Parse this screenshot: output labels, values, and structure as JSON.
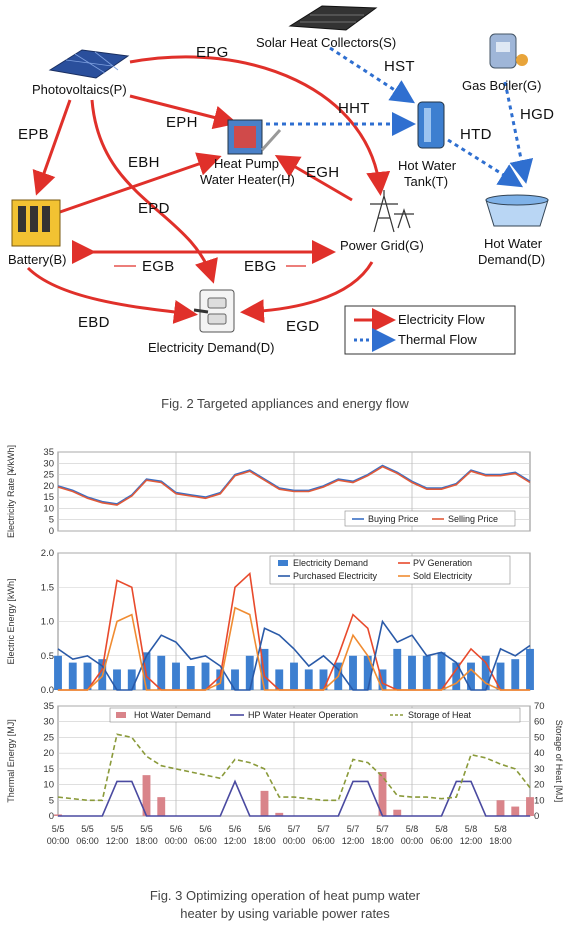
{
  "fig2": {
    "nodes": {
      "pv": "Photovoltaics(P)",
      "shc": "Solar Heat Collectors(S)",
      "boiler": "Gas Boiler(G)",
      "hp_line1": "Heat Pump",
      "hp_line2": "Water Heater(H)",
      "tank_line1": "Hot Water",
      "tank_line2": "Tank(T)",
      "hwd_line1": "Hot Water",
      "hwd_line2": "Demand(D)",
      "battery": "Battery(B)",
      "grid": "Power Grid(G)",
      "demand": "Electricity Demand(D)"
    },
    "flows": {
      "epg": "EPG",
      "hst": "HST",
      "hgd": "HGD",
      "epb": "EPB",
      "eph": "EPH",
      "hht": "HHT",
      "htd": "HTD",
      "ebh": "EBH",
      "egh": "EGH",
      "epd": "EPD",
      "egb": "EGB",
      "ebg": "EBG",
      "ebd": "EBD",
      "egd": "EGD"
    },
    "legend": {
      "electricity": "Electricity Flow",
      "thermal": "Thermal Flow"
    },
    "colors": {
      "electricity": "#e0302a",
      "thermal": "#2f6fd0"
    },
    "caption": "Fig. 2 Targeted appliances and energy flow"
  },
  "fig3": {
    "caption_line1": "Fig. 3 Optimizing operation of heat pump water",
    "caption_line2": "heater by using variable power rates",
    "x_ticks": [
      [
        "5/5",
        "00:00"
      ],
      [
        "5/5",
        "06:00"
      ],
      [
        "5/5",
        "12:00"
      ],
      [
        "5/5",
        "18:00"
      ],
      [
        "5/6",
        "00:00"
      ],
      [
        "5/6",
        "06:00"
      ],
      [
        "5/6",
        "12:00"
      ],
      [
        "5/6",
        "18:00"
      ],
      [
        "5/7",
        "00:00"
      ],
      [
        "5/7",
        "06:00"
      ],
      [
        "5/7",
        "12:00"
      ],
      [
        "5/7",
        "18:00"
      ],
      [
        "5/8",
        "00:00"
      ],
      [
        "5/8",
        "06:00"
      ],
      [
        "5/8",
        "12:00"
      ],
      [
        "5/8",
        "18:00"
      ]
    ]
  },
  "chart_data": [
    {
      "type": "line",
      "ylabel": "Electricity Rate [¥/kWh]",
      "ylim": [
        0,
        35
      ],
      "y_ticks": [
        0,
        5,
        10,
        15,
        20,
        25,
        30,
        35
      ],
      "grid": true,
      "legend_placement": "bottom-right",
      "x_hours": [
        0,
        3,
        6,
        9,
        12,
        15,
        18,
        21,
        24,
        27,
        30,
        33,
        36,
        39,
        42,
        45,
        48,
        51,
        54,
        57,
        60,
        63,
        66,
        69,
        72,
        75,
        78,
        81,
        84,
        87,
        90,
        93,
        96
      ],
      "series": [
        {
          "name": "Buying Price",
          "color": "#3a6fc4",
          "values": [
            20,
            18,
            15,
            13,
            12,
            16,
            23,
            22,
            17,
            16,
            15,
            17,
            25,
            27,
            23,
            19,
            18,
            18,
            20,
            23,
            22,
            25,
            29,
            26,
            22,
            19,
            19,
            21,
            27,
            25,
            25,
            26,
            22
          ]
        },
        {
          "name": "Selling Price",
          "color": "#e05a3a",
          "values": [
            19.5,
            17.5,
            14.5,
            12.5,
            11.5,
            15.5,
            22.5,
            21.5,
            16.5,
            15.5,
            14.5,
            16.5,
            24.5,
            26.5,
            22.5,
            18.5,
            17.5,
            17.5,
            19.5,
            22.5,
            21.5,
            24.5,
            28.5,
            25.5,
            21.5,
            18.5,
            18.5,
            20.5,
            26.5,
            24.5,
            24.5,
            25.5,
            21.5
          ]
        }
      ]
    },
    {
      "type": "bar",
      "ylabel": "Electric Energy [kWh]",
      "ylim": [
        0,
        2.0
      ],
      "y_ticks": [
        "0.0",
        "0.5",
        "1.0",
        "1.5",
        "2.0"
      ],
      "grid": true,
      "legend_placement": "top-right",
      "x_hours": [
        0,
        3,
        6,
        9,
        12,
        15,
        18,
        21,
        24,
        27,
        30,
        33,
        36,
        39,
        42,
        45,
        48,
        51,
        54,
        57,
        60,
        63,
        66,
        69,
        72,
        75,
        78,
        81,
        84,
        87,
        90,
        93,
        96
      ],
      "series": [
        {
          "name": "Electricity Demand",
          "kind": "bar",
          "color": "#3d7fd0",
          "values": [
            0.5,
            0.4,
            0.4,
            0.45,
            0.3,
            0.3,
            0.55,
            0.5,
            0.4,
            0.35,
            0.4,
            0.3,
            0.3,
            0.5,
            0.6,
            0.3,
            0.4,
            0.3,
            0.3,
            0.4,
            0.5,
            0.5,
            0.3,
            0.6,
            0.5,
            0.5,
            0.55,
            0.4,
            0.4,
            0.5,
            0.4,
            0.45,
            0.6
          ]
        },
        {
          "name": "PV Generation",
          "kind": "line",
          "color": "#e84a2c",
          "values": [
            0,
            0,
            0,
            0.3,
            1.6,
            1.5,
            0.2,
            0,
            0,
            0,
            0,
            0.2,
            1.5,
            1.7,
            0.2,
            0,
            0,
            0,
            0,
            0.5,
            1.1,
            0.9,
            0.1,
            0,
            0,
            0,
            0,
            0.3,
            0.6,
            0.4,
            0,
            0,
            0
          ]
        },
        {
          "name": "Purchased Electricity",
          "kind": "line",
          "color": "#2a5aa8",
          "values": [
            0.6,
            0.45,
            0.5,
            0.35,
            0,
            0,
            0.5,
            0.8,
            0.7,
            0.45,
            0.5,
            0.35,
            0,
            0,
            0.9,
            0.8,
            0.6,
            0.35,
            0.5,
            0.3,
            0,
            0,
            1.0,
            0.7,
            0.8,
            0.5,
            0.55,
            0.4,
            0,
            0,
            0.6,
            0.5,
            0.65
          ]
        },
        {
          "name": "Sold Electricity",
          "kind": "line",
          "color": "#f08c32",
          "values": [
            0,
            0,
            0,
            0.2,
            1.0,
            1.1,
            0,
            0,
            0,
            0,
            0,
            0.1,
            1.2,
            1.1,
            0,
            0,
            0,
            0,
            0,
            0.2,
            0.8,
            0.5,
            0,
            0,
            0,
            0,
            0,
            0.1,
            0.3,
            0.1,
            0,
            0,
            0
          ]
        }
      ]
    },
    {
      "type": "bar",
      "ylabel": "Thermal Energy [MJ]",
      "y2label": "Storage of Heat [MJ]",
      "ylim": [
        0,
        35
      ],
      "y2lim": [
        0,
        70
      ],
      "y_ticks": [
        0,
        5,
        10,
        15,
        20,
        25,
        30,
        35
      ],
      "y2_ticks": [
        0,
        10,
        20,
        30,
        40,
        50,
        60,
        70
      ],
      "grid": true,
      "legend_placement": "top",
      "x_hours": [
        0,
        3,
        6,
        9,
        12,
        15,
        18,
        21,
        24,
        27,
        30,
        33,
        36,
        39,
        42,
        45,
        48,
        51,
        54,
        57,
        60,
        63,
        66,
        69,
        72,
        75,
        78,
        81,
        84,
        87,
        90,
        93,
        96
      ],
      "series": [
        {
          "name": "Hot Water Demand",
          "kind": "bar",
          "color": "#d9848a",
          "values": [
            0.5,
            0,
            0,
            0,
            0,
            0,
            13,
            6,
            0,
            0,
            0,
            0,
            0,
            0,
            8,
            1,
            0,
            0,
            0,
            0,
            0,
            0,
            14,
            2,
            0,
            0,
            0,
            0,
            0,
            0,
            5,
            3,
            6
          ]
        },
        {
          "name": "HP Water Heater Operation",
          "kind": "line",
          "color": "#4a4aa0",
          "values": [
            0,
            0,
            0,
            0,
            11,
            11,
            0,
            0,
            0,
            0,
            0,
            0,
            11,
            0,
            0,
            0,
            0,
            0,
            0,
            0,
            11,
            11,
            0,
            0,
            0,
            0,
            0,
            11,
            11,
            0,
            0,
            0,
            0
          ]
        },
        {
          "name": "Storage of Heat",
          "kind": "dashed-line",
          "color": "#8a9a3a",
          "axis": "y2",
          "values": [
            12,
            11,
            10,
            10,
            52,
            50,
            38,
            32,
            30,
            28,
            26,
            24,
            36,
            34,
            30,
            12,
            12,
            11,
            10,
            10,
            36,
            34,
            25,
            13,
            12,
            12,
            11,
            12,
            39,
            37,
            33,
            30,
            18
          ]
        }
      ]
    }
  ]
}
